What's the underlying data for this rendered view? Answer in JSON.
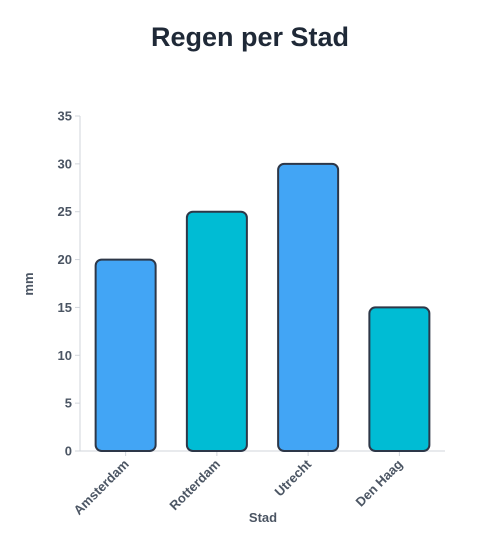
{
  "chart_data": {
    "type": "bar",
    "title": "Regen per Stad",
    "xlabel": "Stad",
    "ylabel": "mm",
    "categories": [
      "Amsterdam",
      "Rotterdam",
      "Utrecht",
      "Den Haag"
    ],
    "values": [
      20,
      25,
      30,
      15
    ],
    "ylim": [
      0,
      35
    ],
    "yticks": [
      0,
      5,
      10,
      15,
      20,
      25,
      30,
      35
    ],
    "grid": false,
    "colors": [
      "#42a5f5",
      "#00bcd4",
      "#42a5f5",
      "#00bcd4"
    ],
    "bar_border_color": "#2d3748"
  }
}
